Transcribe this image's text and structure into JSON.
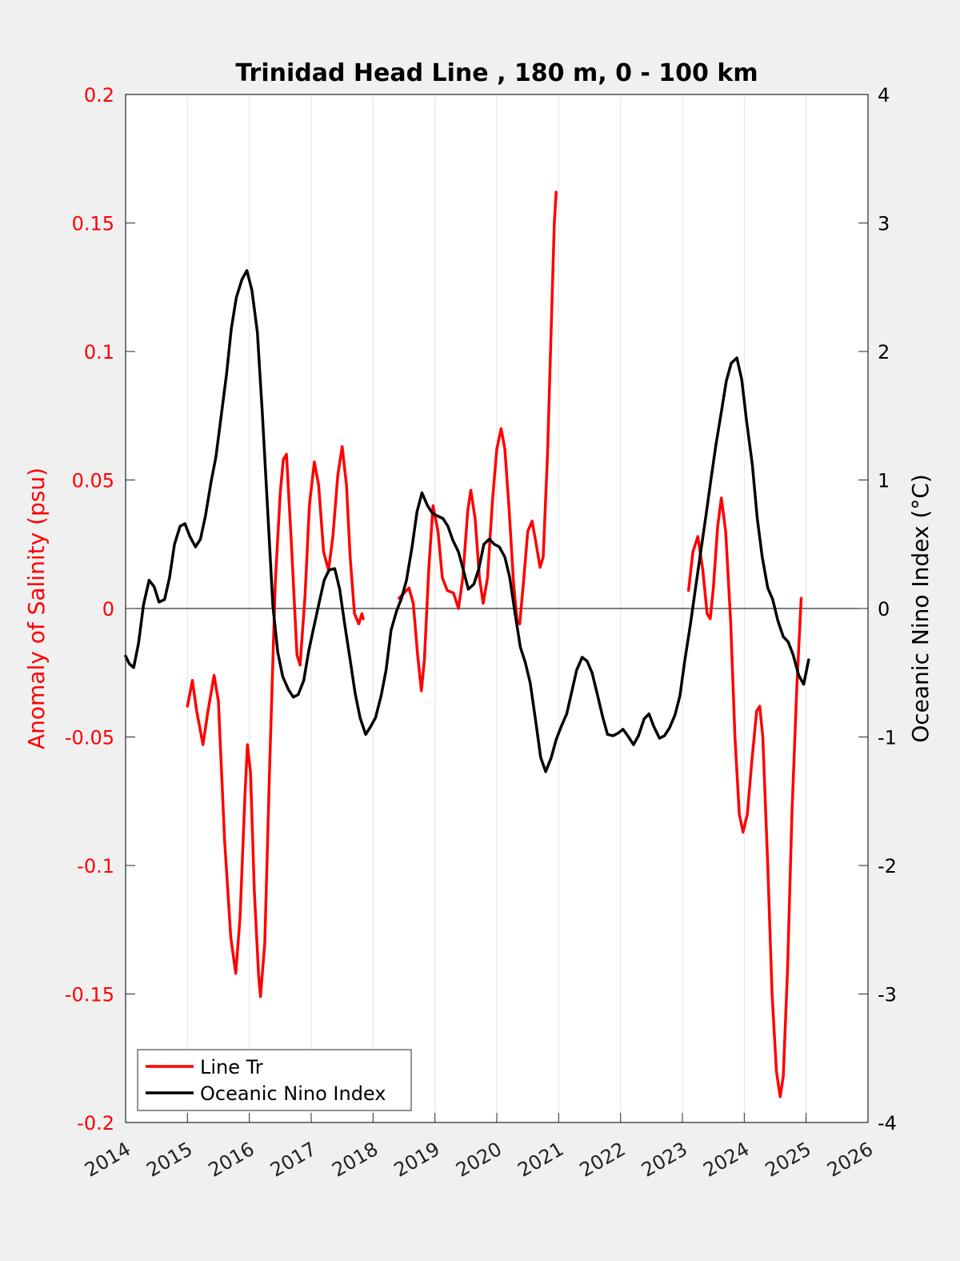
{
  "chart_data": {
    "type": "line",
    "title": "Trinidad Head Line , 180 m, 0 - 100 km",
    "ylabel_left": "Anomaly of Salinity (psu)",
    "ylabel_right": "Oceanic Nino Index (°C)",
    "xlabel": "",
    "xlim": [
      2014,
      2026
    ],
    "ylim_left": [
      -0.2,
      0.2
    ],
    "ylim_right": [
      -4,
      4
    ],
    "grid": "vertical",
    "legend_position": "bottom-left",
    "x_ticks": [
      "2014",
      "2015",
      "2016",
      "2017",
      "2018",
      "2019",
      "2020",
      "2021",
      "2022",
      "2023",
      "2024",
      "2025",
      "2026"
    ],
    "y_ticks_left": [
      "-0.2",
      "-0.15",
      "-0.1",
      "-0.05",
      "0",
      "0.05",
      "0.1",
      "0.15",
      "0.2"
    ],
    "y_ticks_right": [
      "-4",
      "-3",
      "-2",
      "-1",
      "0",
      "1",
      "2",
      "3",
      "4"
    ],
    "series": [
      {
        "name": "Line Tr",
        "axis": "left",
        "color": "#ff0000",
        "segments": [
          [
            [
              2015.0,
              -0.038
            ],
            [
              2015.08,
              -0.028
            ],
            [
              2015.15,
              -0.04
            ],
            [
              2015.25,
              -0.053
            ],
            [
              2015.33,
              -0.04
            ],
            [
              2015.43,
              -0.026
            ],
            [
              2015.5,
              -0.036
            ],
            [
              2015.6,
              -0.09
            ],
            [
              2015.7,
              -0.128
            ],
            [
              2015.78,
              -0.142
            ],
            [
              2015.85,
              -0.12
            ],
            [
              2015.93,
              -0.072
            ],
            [
              2015.97,
              -0.053
            ],
            [
              2016.02,
              -0.064
            ],
            [
              2016.08,
              -0.11
            ],
            [
              2016.15,
              -0.143
            ],
            [
              2016.18,
              -0.151
            ],
            [
              2016.25,
              -0.13
            ],
            [
              2016.33,
              -0.06
            ],
            [
              2016.42,
              0.01
            ],
            [
              2016.5,
              0.045
            ],
            [
              2016.55,
              0.058
            ],
            [
              2016.6,
              0.06
            ],
            [
              2016.68,
              0.025
            ],
            [
              2016.77,
              -0.018
            ],
            [
              2016.82,
              -0.022
            ],
            [
              2016.9,
              0.005
            ],
            [
              2016.97,
              0.04
            ],
            [
              2017.05,
              0.057
            ],
            [
              2017.12,
              0.048
            ],
            [
              2017.2,
              0.022
            ],
            [
              2017.28,
              0.015
            ],
            [
              2017.35,
              0.028
            ],
            [
              2017.43,
              0.052
            ],
            [
              2017.5,
              0.063
            ],
            [
              2017.57,
              0.048
            ],
            [
              2017.63,
              0.02
            ],
            [
              2017.7,
              -0.002
            ],
            [
              2017.77,
              -0.006
            ],
            [
              2017.82,
              -0.002
            ],
            [
              2017.84,
              -0.004
            ]
          ],
          [
            [
              2018.42,
              0.004
            ],
            [
              2018.5,
              0.006
            ],
            [
              2018.58,
              0.008
            ],
            [
              2018.65,
              0.002
            ],
            [
              2018.72,
              -0.018
            ],
            [
              2018.78,
              -0.032
            ],
            [
              2018.83,
              -0.02
            ],
            [
              2018.9,
              0.015
            ],
            [
              2018.97,
              0.04
            ],
            [
              2019.05,
              0.03
            ],
            [
              2019.12,
              0.012
            ],
            [
              2019.2,
              0.007
            ],
            [
              2019.3,
              0.006
            ],
            [
              2019.38,
              0.0
            ],
            [
              2019.45,
              0.012
            ],
            [
              2019.53,
              0.038
            ],
            [
              2019.58,
              0.046
            ],
            [
              2019.65,
              0.035
            ],
            [
              2019.72,
              0.012
            ],
            [
              2019.78,
              0.002
            ],
            [
              2019.85,
              0.012
            ],
            [
              2019.93,
              0.042
            ],
            [
              2020.0,
              0.062
            ],
            [
              2020.07,
              0.07
            ],
            [
              2020.13,
              0.062
            ],
            [
              2020.2,
              0.038
            ],
            [
              2020.27,
              0.01
            ],
            [
              2020.33,
              -0.005
            ],
            [
              2020.37,
              -0.006
            ],
            [
              2020.43,
              0.01
            ],
            [
              2020.5,
              0.03
            ],
            [
              2020.57,
              0.034
            ],
            [
              2020.63,
              0.026
            ],
            [
              2020.7,
              0.016
            ],
            [
              2020.75,
              0.02
            ],
            [
              2020.82,
              0.06
            ],
            [
              2020.88,
              0.11
            ],
            [
              2020.93,
              0.15
            ],
            [
              2020.96,
              0.162
            ]
          ],
          [
            [
              2023.1,
              0.007
            ],
            [
              2023.17,
              0.022
            ],
            [
              2023.25,
              0.028
            ],
            [
              2023.33,
              0.015
            ],
            [
              2023.4,
              -0.002
            ],
            [
              2023.45,
              -0.004
            ],
            [
              2023.5,
              0.008
            ],
            [
              2023.57,
              0.032
            ],
            [
              2023.63,
              0.043
            ],
            [
              2023.7,
              0.03
            ],
            [
              2023.78,
              -0.005
            ],
            [
              2023.85,
              -0.05
            ],
            [
              2023.92,
              -0.08
            ],
            [
              2023.98,
              -0.087
            ],
            [
              2024.05,
              -0.08
            ],
            [
              2024.12,
              -0.06
            ],
            [
              2024.2,
              -0.04
            ],
            [
              2024.25,
              -0.038
            ],
            [
              2024.3,
              -0.05
            ],
            [
              2024.38,
              -0.1
            ],
            [
              2024.45,
              -0.15
            ],
            [
              2024.52,
              -0.18
            ],
            [
              2024.58,
              -0.19
            ],
            [
              2024.63,
              -0.182
            ],
            [
              2024.7,
              -0.14
            ],
            [
              2024.77,
              -0.08
            ],
            [
              2024.85,
              -0.03
            ],
            [
              2024.92,
              0.004
            ]
          ]
        ]
      },
      {
        "name": "Oceanic Nino Index",
        "axis": "right",
        "color": "#000000",
        "segments": [
          [
            [
              2014.0,
              -0.37
            ],
            [
              2014.06,
              -0.43
            ],
            [
              2014.13,
              -0.46
            ],
            [
              2014.21,
              -0.27
            ],
            [
              2014.29,
              0.03
            ],
            [
              2014.38,
              0.22
            ],
            [
              2014.46,
              0.17
            ],
            [
              2014.54,
              0.05
            ],
            [
              2014.63,
              0.07
            ],
            [
              2014.71,
              0.24
            ],
            [
              2014.79,
              0.5
            ],
            [
              2014.88,
              0.64
            ],
            [
              2014.96,
              0.66
            ],
            [
              2015.04,
              0.56
            ],
            [
              2015.13,
              0.48
            ],
            [
              2015.21,
              0.54
            ],
            [
              2015.29,
              0.72
            ],
            [
              2015.38,
              0.98
            ],
            [
              2015.46,
              1.18
            ],
            [
              2015.54,
              1.48
            ],
            [
              2015.63,
              1.82
            ],
            [
              2015.71,
              2.18
            ],
            [
              2015.79,
              2.42
            ],
            [
              2015.88,
              2.56
            ],
            [
              2015.96,
              2.63
            ],
            [
              2016.04,
              2.48
            ],
            [
              2016.13,
              2.15
            ],
            [
              2016.21,
              1.52
            ],
            [
              2016.29,
              0.82
            ],
            [
              2016.38,
              0.02
            ],
            [
              2016.46,
              -0.34
            ],
            [
              2016.54,
              -0.53
            ],
            [
              2016.63,
              -0.63
            ],
            [
              2016.71,
              -0.69
            ],
            [
              2016.79,
              -0.67
            ],
            [
              2016.88,
              -0.56
            ],
            [
              2016.96,
              -0.33
            ],
            [
              2017.04,
              -0.15
            ],
            [
              2017.13,
              0.05
            ],
            [
              2017.21,
              0.22
            ],
            [
              2017.29,
              0.3
            ],
            [
              2017.38,
              0.31
            ],
            [
              2017.46,
              0.15
            ],
            [
              2017.54,
              -0.12
            ],
            [
              2017.63,
              -0.4
            ],
            [
              2017.71,
              -0.66
            ],
            [
              2017.79,
              -0.85
            ],
            [
              2017.88,
              -0.98
            ],
            [
              2017.96,
              -0.92
            ],
            [
              2018.04,
              -0.85
            ],
            [
              2018.13,
              -0.68
            ],
            [
              2018.21,
              -0.48
            ],
            [
              2018.29,
              -0.17
            ],
            [
              2018.38,
              -0.02
            ],
            [
              2018.46,
              0.08
            ],
            [
              2018.54,
              0.22
            ],
            [
              2018.63,
              0.48
            ],
            [
              2018.71,
              0.75
            ],
            [
              2018.79,
              0.9
            ],
            [
              2018.88,
              0.8
            ],
            [
              2018.96,
              0.74
            ],
            [
              2019.04,
              0.72
            ],
            [
              2019.13,
              0.7
            ],
            [
              2019.21,
              0.64
            ],
            [
              2019.29,
              0.53
            ],
            [
              2019.38,
              0.44
            ],
            [
              2019.46,
              0.3
            ],
            [
              2019.54,
              0.15
            ],
            [
              2019.63,
              0.19
            ],
            [
              2019.71,
              0.31
            ],
            [
              2019.79,
              0.5
            ],
            [
              2019.88,
              0.54
            ],
            [
              2019.96,
              0.5
            ],
            [
              2020.04,
              0.48
            ],
            [
              2020.13,
              0.4
            ],
            [
              2020.21,
              0.24
            ],
            [
              2020.29,
              -0.02
            ],
            [
              2020.38,
              -0.3
            ],
            [
              2020.46,
              -0.42
            ],
            [
              2020.54,
              -0.58
            ],
            [
              2020.63,
              -0.88
            ],
            [
              2020.71,
              -1.16
            ],
            [
              2020.79,
              -1.27
            ],
            [
              2020.88,
              -1.16
            ],
            [
              2020.96,
              -1.02
            ],
            [
              2021.04,
              -0.92
            ],
            [
              2021.13,
              -0.82
            ],
            [
              2021.21,
              -0.65
            ],
            [
              2021.29,
              -0.48
            ],
            [
              2021.38,
              -0.38
            ],
            [
              2021.46,
              -0.41
            ],
            [
              2021.54,
              -0.5
            ],
            [
              2021.63,
              -0.68
            ],
            [
              2021.71,
              -0.84
            ],
            [
              2021.79,
              -0.98
            ],
            [
              2021.88,
              -0.99
            ],
            [
              2021.96,
              -0.97
            ],
            [
              2022.04,
              -0.94
            ],
            [
              2022.13,
              -1.0
            ],
            [
              2022.21,
              -1.06
            ],
            [
              2022.29,
              -0.99
            ],
            [
              2022.38,
              -0.86
            ],
            [
              2022.46,
              -0.82
            ],
            [
              2022.54,
              -0.92
            ],
            [
              2022.63,
              -1.01
            ],
            [
              2022.71,
              -0.99
            ],
            [
              2022.79,
              -0.93
            ],
            [
              2022.88,
              -0.83
            ],
            [
              2022.96,
              -0.68
            ],
            [
              2023.04,
              -0.4
            ],
            [
              2023.13,
              -0.12
            ],
            [
              2023.21,
              0.15
            ],
            [
              2023.29,
              0.42
            ],
            [
              2023.38,
              0.72
            ],
            [
              2023.46,
              1.0
            ],
            [
              2023.54,
              1.27
            ],
            [
              2023.63,
              1.53
            ],
            [
              2023.71,
              1.77
            ],
            [
              2023.79,
              1.91
            ],
            [
              2023.88,
              1.95
            ],
            [
              2023.96,
              1.78
            ],
            [
              2024.04,
              1.45
            ],
            [
              2024.13,
              1.12
            ],
            [
              2024.21,
              0.7
            ],
            [
              2024.29,
              0.4
            ],
            [
              2024.38,
              0.16
            ],
            [
              2024.46,
              0.07
            ],
            [
              2024.54,
              -0.09
            ],
            [
              2024.63,
              -0.22
            ],
            [
              2024.71,
              -0.26
            ],
            [
              2024.79,
              -0.36
            ],
            [
              2024.88,
              -0.52
            ],
            [
              2024.96,
              -0.59
            ],
            [
              2025.04,
              -0.4
            ]
          ]
        ]
      }
    ]
  },
  "legend": {
    "items": [
      {
        "label": "Line Tr",
        "color": "#ff0000"
      },
      {
        "label": "Oceanic Nino Index",
        "color": "#000000"
      }
    ]
  }
}
